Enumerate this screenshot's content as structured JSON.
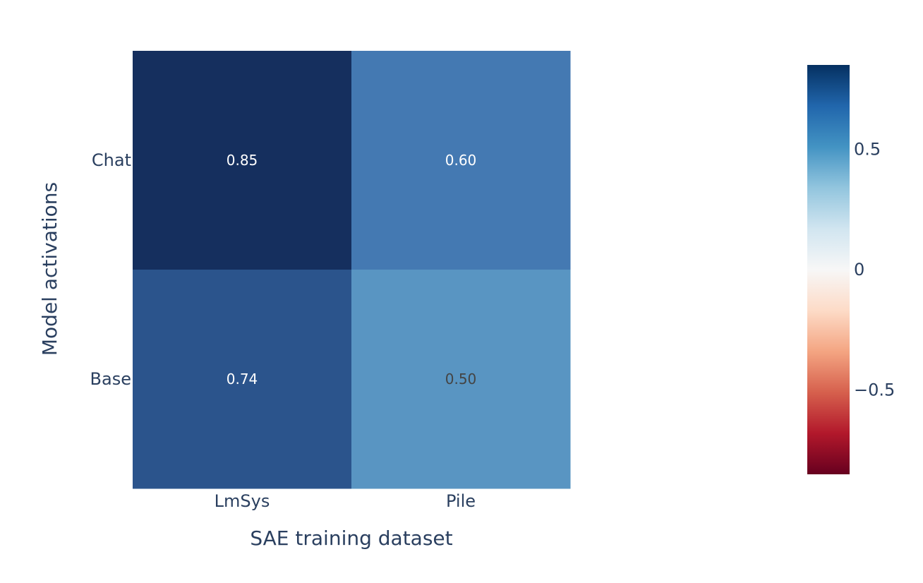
{
  "chart_data": {
    "type": "heatmap",
    "x_categories": [
      "LmSys",
      "Pile"
    ],
    "y_categories": [
      "Chat",
      "Base"
    ],
    "z": [
      [
        0.85,
        0.6
      ],
      [
        0.74,
        0.5
      ]
    ],
    "cell_labels": [
      [
        "0.85",
        "0.60"
      ],
      [
        "0.74",
        "0.50"
      ]
    ],
    "xlabel": "SAE training dataset",
    "ylabel": "Model activations",
    "colorbar": {
      "range": [
        -0.85,
        0.85
      ],
      "ticks": [
        0.5,
        0,
        -0.5
      ],
      "tick_labels": [
        "0.5",
        "0",
        "−0.5"
      ],
      "colorscale": [
        [
          0.0,
          "#67001f"
        ],
        [
          0.1,
          "#b2182b"
        ],
        [
          0.2,
          "#d6604d"
        ],
        [
          0.3,
          "#f4a582"
        ],
        [
          0.4,
          "#fddbc7"
        ],
        [
          0.5,
          "#f7f7f7"
        ],
        [
          0.6,
          "#d1e5f0"
        ],
        [
          0.7,
          "#92c5de"
        ],
        [
          0.8,
          "#4393c3"
        ],
        [
          0.9,
          "#2166ac"
        ],
        [
          1.0,
          "#053061"
        ]
      ]
    },
    "colors": {
      "cells": [
        [
          "#152f5e",
          "#4479b2"
        ],
        [
          "#2b548c",
          "#5995c2"
        ]
      ],
      "text_dark": "#444444",
      "text_light": "#ffffff",
      "axis_text": "#2a3f5f"
    }
  }
}
